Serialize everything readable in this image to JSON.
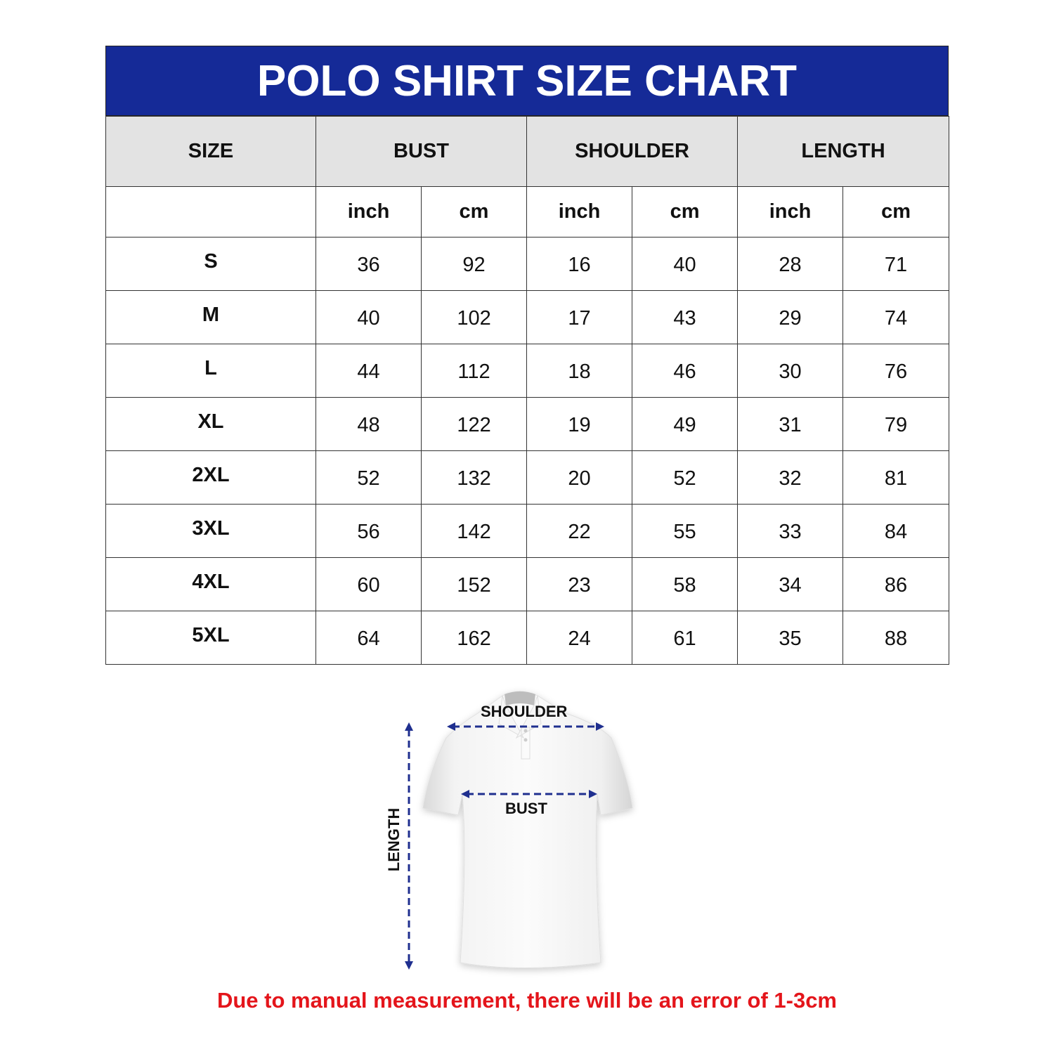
{
  "title": "POLO SHIRT SIZE CHART",
  "table": {
    "groups": [
      "SIZE",
      "BUST",
      "SHOULDER",
      "LENGTH"
    ],
    "units": [
      "inch",
      "cm",
      "inch",
      "cm",
      "inch",
      "cm"
    ],
    "rows": [
      {
        "size": "S",
        "values": [
          "36",
          "92",
          "16",
          "40",
          "28",
          "71"
        ]
      },
      {
        "size": "M",
        "values": [
          "40",
          "102",
          "17",
          "43",
          "29",
          "74"
        ]
      },
      {
        "size": "L",
        "values": [
          "44",
          "112",
          "18",
          "46",
          "30",
          "76"
        ]
      },
      {
        "size": "XL",
        "values": [
          "48",
          "122",
          "19",
          "49",
          "31",
          "79"
        ]
      },
      {
        "size": "2XL",
        "values": [
          "52",
          "132",
          "20",
          "52",
          "32",
          "81"
        ]
      },
      {
        "size": "3XL",
        "values": [
          "56",
          "142",
          "22",
          "55",
          "33",
          "84"
        ]
      },
      {
        "size": "4XL",
        "values": [
          "60",
          "152",
          "23",
          "58",
          "34",
          "86"
        ]
      },
      {
        "size": "5XL",
        "values": [
          "64",
          "162",
          "24",
          "61",
          "35",
          "88"
        ]
      }
    ]
  },
  "diagram": {
    "shoulder": "SHOULDER",
    "bust": "BUST",
    "length": "LENGTH"
  },
  "note": "Due to manual measurement, there will be an error of 1-3cm",
  "colors": {
    "header": "#152a97",
    "note": "#e4151b",
    "arrows": "#1f2f8f"
  }
}
